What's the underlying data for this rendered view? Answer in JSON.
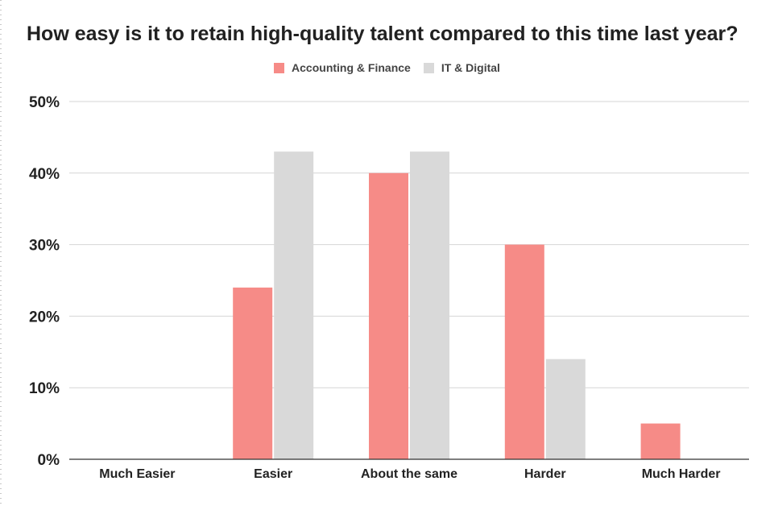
{
  "chart_data": {
    "type": "bar",
    "title": "How easy is it to retain high-quality talent compared to this time last year?",
    "categories": [
      "Much Easier",
      "Easier",
      "About the same",
      "Harder",
      "Much Harder"
    ],
    "series": [
      {
        "name": "Accounting & Finance",
        "color": "#f68b87",
        "values": [
          0,
          24,
          40,
          30,
          5
        ]
      },
      {
        "name": "IT & Digital",
        "color": "#d9d9d9",
        "values": [
          0,
          43,
          43,
          14,
          0
        ]
      }
    ],
    "yticks": [
      "0%",
      "10%",
      "20%",
      "30%",
      "40%",
      "50%"
    ],
    "ylim": [
      0,
      50
    ],
    "xlabel": "",
    "ylabel": "",
    "grid": true,
    "legend_position": "top-center"
  }
}
